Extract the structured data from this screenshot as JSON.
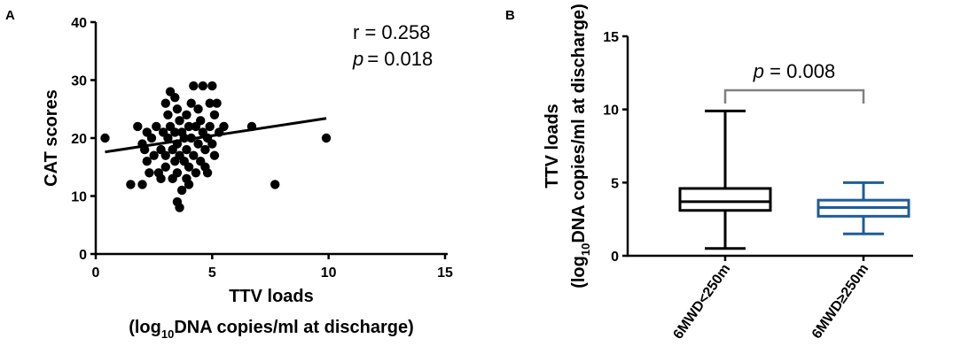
{
  "colors": {
    "ink": "#000000",
    "group2": "#1f5c99",
    "bracket": "#808080"
  },
  "panelA": {
    "letter": "A",
    "r_label": "r = 0.258",
    "p_symbol": "p",
    "p_value": "= 0.018",
    "xlabel_line1": "TTV loads",
    "xlabel_prefix": "(log",
    "xlabel_sub": "10",
    "xlabel_rest": "DNA copies/ml at discharge)",
    "ylabel": "CAT  scores"
  },
  "panelB": {
    "letter": "B",
    "p_symbol": "p",
    "p_value": " = 0.008",
    "ylabel_line1": "TTV loads",
    "ylabel_prefix": "(log",
    "ylabel_sub": "10",
    "ylabel_rest": "DNA copies/ml at discharge)"
  },
  "chart_data": [
    {
      "type": "scatter",
      "xlim": [
        0,
        15
      ],
      "ylim": [
        0,
        40
      ],
      "x_ticks": [
        "0",
        "5",
        "10",
        "15"
      ],
      "y_ticks": [
        "0",
        "10",
        "20",
        "30",
        "40"
      ],
      "xlabel": "TTV loads (log10DNA copies/ml at discharge)",
      "ylabel": "CAT  scores",
      "annotations": [
        "r = 0.258",
        "p = 0.018"
      ],
      "regression": {
        "x": [
          0.4,
          9.9
        ],
        "y": [
          17.6,
          23.4
        ]
      },
      "points": [
        [
          0.4,
          20
        ],
        [
          1.5,
          12
        ],
        [
          1.8,
          22
        ],
        [
          2.0,
          19
        ],
        [
          2.0,
          12
        ],
        [
          2.1,
          18
        ],
        [
          2.2,
          16
        ],
        [
          2.3,
          14
        ],
        [
          2.4,
          20
        ],
        [
          2.5,
          17
        ],
        [
          2.6,
          22
        ],
        [
          2.7,
          14
        ],
        [
          2.8,
          13
        ],
        [
          2.8,
          18
        ],
        [
          2.9,
          21
        ],
        [
          3.0,
          17
        ],
        [
          3.0,
          26
        ],
        [
          3.1,
          24
        ],
        [
          3.1,
          20
        ],
        [
          3.2,
          28
        ],
        [
          3.2,
          22
        ],
        [
          3.3,
          18
        ],
        [
          3.3,
          13
        ],
        [
          3.4,
          27
        ],
        [
          3.4,
          21
        ],
        [
          3.4,
          16
        ],
        [
          3.5,
          9
        ],
        [
          3.5,
          25
        ],
        [
          3.5,
          19
        ],
        [
          3.5,
          14
        ],
        [
          3.6,
          23
        ],
        [
          3.6,
          17
        ],
        [
          3.6,
          8
        ],
        [
          3.7,
          21
        ],
        [
          3.7,
          11
        ],
        [
          3.8,
          20
        ],
        [
          3.8,
          16
        ],
        [
          3.9,
          24
        ],
        [
          3.9,
          18
        ],
        [
          3.9,
          13
        ],
        [
          4.0,
          22
        ],
        [
          4.0,
          15
        ],
        [
          4.1,
          26
        ],
        [
          4.1,
          20
        ],
        [
          4.2,
          29
        ],
        [
          4.2,
          17
        ],
        [
          4.3,
          22
        ],
        [
          4.3,
          14
        ],
        [
          4.4,
          25
        ],
        [
          4.4,
          19
        ],
        [
          4.5,
          23
        ],
        [
          4.5,
          16
        ],
        [
          4.6,
          29
        ],
        [
          4.6,
          21
        ],
        [
          4.7,
          18
        ],
        [
          4.7,
          15
        ],
        [
          4.8,
          20
        ],
        [
          4.8,
          14
        ],
        [
          4.9,
          26
        ],
        [
          4.9,
          22
        ],
        [
          5.0,
          29
        ],
        [
          5.0,
          19
        ],
        [
          5.1,
          24
        ],
        [
          5.1,
          17
        ],
        [
          5.2,
          26
        ],
        [
          5.3,
          21
        ],
        [
          5.5,
          22
        ],
        [
          2.2,
          21
        ],
        [
          3.0,
          15
        ],
        [
          4.0,
          12
        ],
        [
          6.7,
          22
        ],
        [
          7.7,
          12
        ],
        [
          9.9,
          20
        ]
      ]
    },
    {
      "type": "box",
      "ylim": [
        0,
        15
      ],
      "y_ticks": [
        "0",
        "5",
        "10",
        "15"
      ],
      "ylabel": "TTV loads (log10DNA copies/ml at discharge)",
      "categories": [
        "6MWD<250m",
        "6MWD≥250m"
      ],
      "series": [
        {
          "name": "6MWD<250m",
          "min": 0.5,
          "q1": 3.1,
          "median": 3.7,
          "q3": 4.6,
          "max": 9.9
        },
        {
          "name": "6MWD≥250m",
          "min": 1.5,
          "q1": 2.7,
          "median": 3.3,
          "q3": 3.8,
          "max": 5.0
        }
      ],
      "annotation": "p = 0.008"
    }
  ]
}
